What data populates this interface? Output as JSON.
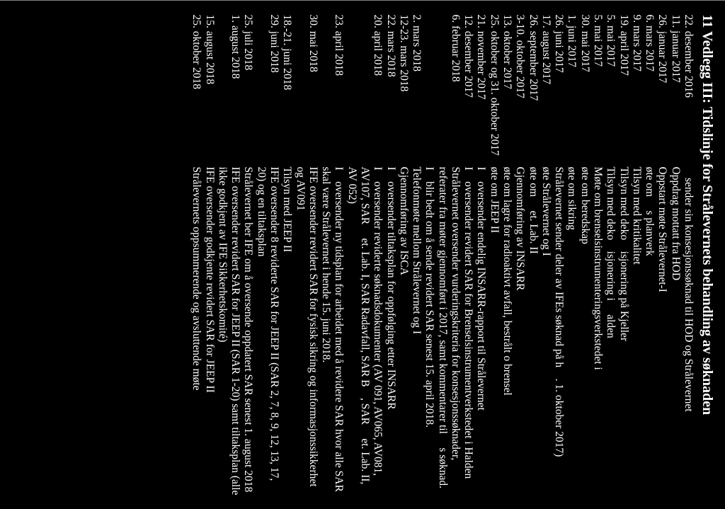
{
  "title": "11  Vedlegg III: Tidslinje for Strålevernets behandling av søknaden",
  "colors": {
    "background": "#000000",
    "text": "#ffffff"
  },
  "font": {
    "family": "Times New Roman",
    "title_size_pt": 20,
    "body_size_pt": 15.5,
    "title_weight": "bold"
  },
  "rows": [
    {
      "date": "22. desember 2016",
      "desc_parts": [
        "",
        "sender sin konsesjonssøknad til HOD og Strålevernet"
      ]
    },
    {
      "date": "11. januar 2017",
      "desc_parts": [
        "Oppdrag mottatt fra HOD"
      ]
    },
    {
      "date": "26. januar 2017",
      "desc_parts": [
        "Oppstart møte Strålevernet-I"
      ]
    },
    {
      "date": "6. mars 2017",
      "desc_parts": [
        "øte om ",
        "s planverk"
      ]
    },
    {
      "date": "9. mars 2017",
      "desc_parts": [
        "Tilsyn med kritikalitet"
      ]
    },
    {
      "date": "19. april 2017",
      "desc_parts": [
        "Tilsyn med deko",
        "isjonering på Kjeller"
      ]
    },
    {
      "date": "5. mai 2017",
      "desc_parts": [
        "Tilsyn med deko",
        "isjonering i ",
        "alden"
      ]
    },
    {
      "date": "5. mai 2017",
      "desc_parts": [
        "Møte om brenselsinstrumenteringsverkstedet i"
      ]
    },
    {
      "date": "30. mai 2017",
      "desc_parts": [
        "øte om beredskap"
      ]
    },
    {
      "date": "1. juni 2017",
      "desc_parts": [
        "øte om sikring"
      ]
    },
    {
      "date": "26. juni 2017",
      "desc_parts": [
        "Strålevernet sender deler av IFEs søknad på h",
        ". 1. oktober 2017)"
      ]
    },
    {
      "date": "17. august 2017",
      "desc_parts": [
        "øte Strålevernet og I"
      ]
    },
    {
      "date": "26. september 2017",
      "desc_parts": [
        "øte om ",
        "et. Lab. II"
      ]
    },
    {
      "date": "3-10. oktober 2017",
      "desc_parts": [
        "Gjennomføring av INSARR"
      ]
    },
    {
      "date": "13. oktober 2017",
      "desc_parts": [
        "øte om lagre for radioaktivt avfall, bestrålt o brensel"
      ]
    },
    {
      "date": "25. oktober og 31. oktober 2017",
      "desc_parts": [
        "øte om JEEP II"
      ]
    },
    {
      "date": "21. november 2017",
      "desc_parts": [
        "I",
        "oversender endelig INSARR-rapport til Strålevernet"
      ]
    },
    {
      "date": "12. desember 2017",
      "desc_parts": [
        "I",
        "oversender revidert SAR for Brenselsinstrumentverkstedet i Halden"
      ]
    },
    {
      "date": "6. februar 2018",
      "desc_parts": [
        "Strålevernet oversender vurderingskriteria for konsesjonssøknader, referater fra møter gjennomført i 2017, samt kommentarer til ",
        "s søknad. I",
        "blir bedt om å sende revidert SAR senest 15. april 2018."
      ]
    },
    {
      "date": "2. mars 2018",
      "desc_parts": [
        "Telefonmøte mellom Strålevernet og I"
      ]
    },
    {
      "date": "12-23. mars 2018",
      "desc_parts": [
        "Gjennomføring av ISCA"
      ]
    },
    {
      "date": "22. mars 2018",
      "desc_parts": [
        "I",
        "oversender tiltaksplan for oppfølging etter INSARR"
      ]
    },
    {
      "date": "20. april 2018",
      "desc_parts": [
        "I",
        "oversender reviderte søknadsdokumenter (AV 091, AV065, AV081, AV107, SAR ",
        "et. Lab. I, SAR Radavfall, SAR B",
        ", SAR ",
        "et. Lab. II, AV 052)"
      ]
    },
    {
      "date": "23. april 2018",
      "desc_parts": [
        "I",
        "oversender ny tidsplan for arbeidet med å revidere SAR hvor alle SAR skal være Strålevernet i hende 15. juni 2018."
      ]
    },
    {
      "date": "30. mai 2018",
      "desc_parts": [
        "IFE oversender revidert SAR for fysisk sikring og informasjonssikkerhet og AV091"
      ]
    },
    {
      "date": "18.-21. juni 2018",
      "desc_parts": [
        "Tilsyn med JEEP II"
      ]
    },
    {
      "date": "29. juni 2018",
      "desc_parts": [
        "IFE oversender 8 reviderte SAR for JEEP II (SAR 2, 7, 8, 9, 12, 13, 17, 20) og en tiltaksplan"
      ]
    },
    {
      "date": "25. juli 2018",
      "desc_parts": [
        "Strålevernet ber IFE om å oversende oppdatert SAR senest 1. august 2018"
      ]
    },
    {
      "date": "1. august 2018",
      "desc_parts": [
        "IFE oversender revidert SAR for JEEP II (SAR 1-20) samt tiltaksplan (alle ikke godkjent av IFE Sikkerhetskomité)"
      ]
    },
    {
      "date": "15. august 2018",
      "desc_parts": [
        "IFE oversender godkjente revidert SAR for JEEP II"
      ]
    },
    {
      "date": "25. oktober 2018",
      "desc_parts": [
        "Strålevernets oppsummerende og avsluttende møte"
      ]
    }
  ]
}
